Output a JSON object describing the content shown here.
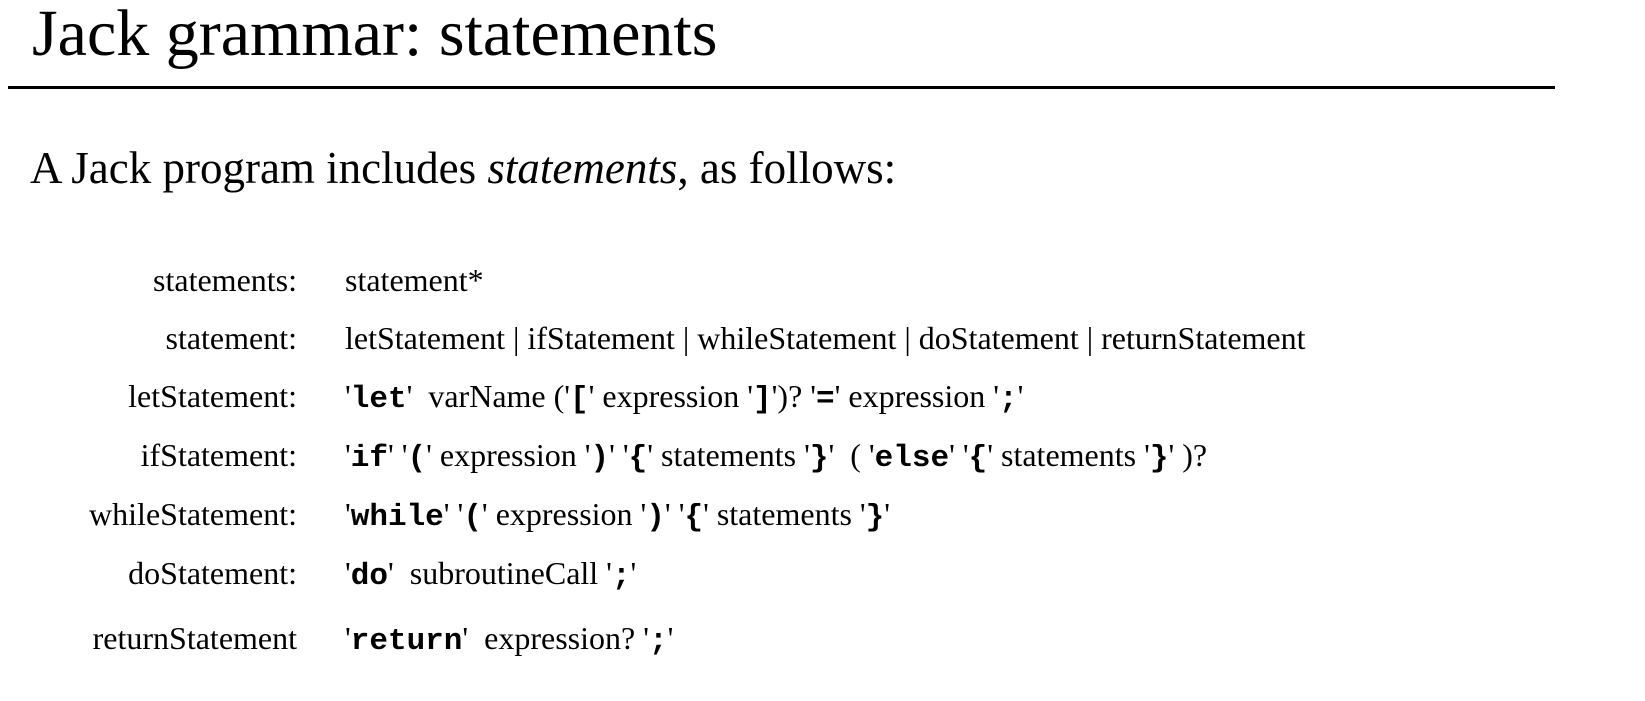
{
  "header": {
    "title": "Jack grammar: statements"
  },
  "subtitle": [
    "A Jack program includes ",
    {
      "em": "statements"
    },
    ", as follows:"
  ],
  "rules": [
    {
      "name": "statements:",
      "parts": [
        "statement*"
      ]
    },
    {
      "name": "statement:",
      "parts": [
        "letStatement | ifStatement | whileStatement | doStatement | returnStatement"
      ]
    },
    {
      "name": "letStatement:",
      "parts": [
        "'",
        {
          "code": "let"
        },
        "'  varName ('",
        {
          "code": "["
        },
        "' expression '",
        {
          "code": "]"
        },
        "')? '",
        {
          "code": "="
        },
        "' expression '",
        {
          "code": ";"
        },
        "'"
      ]
    },
    {
      "name": "ifStatement:",
      "parts": [
        "'",
        {
          "code": "if"
        },
        "' '",
        {
          "code": "("
        },
        "' expression '",
        {
          "code": ")"
        },
        "' '",
        {
          "code": "{"
        },
        "' statements '",
        {
          "code": "}"
        },
        "'  ( '",
        {
          "code": "else"
        },
        "' '",
        {
          "code": "{"
        },
        "' statements '",
        {
          "code": "}"
        },
        "' )?"
      ]
    },
    {
      "name": "whileStatement:",
      "parts": [
        "'",
        {
          "code": "while"
        },
        "' '",
        {
          "code": "("
        },
        "' expression '",
        {
          "code": ")"
        },
        "' '",
        {
          "code": "{"
        },
        "' statements '",
        {
          "code": "}"
        },
        "'"
      ]
    },
    {
      "name": "doStatement:",
      "parts": [
        "'",
        {
          "code": "do"
        },
        "'  subroutineCall '",
        {
          "code": ";"
        },
        "'"
      ]
    },
    {
      "name": "returnStatement",
      "parts": [
        "'",
        {
          "code": "return"
        },
        "'  expression? '",
        {
          "code": ";"
        },
        "'"
      ]
    }
  ]
}
